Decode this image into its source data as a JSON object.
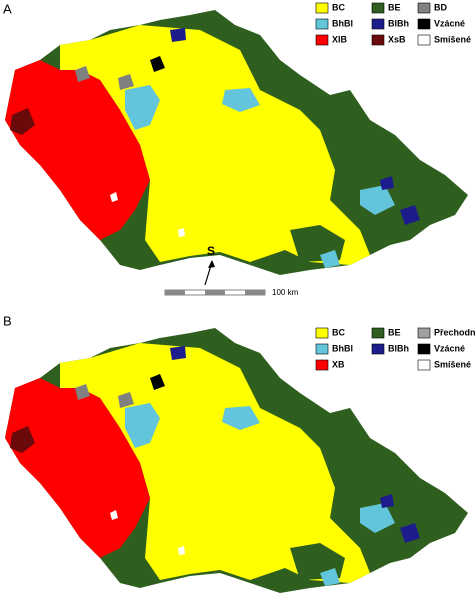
{
  "panels": [
    {
      "label": "A",
      "legend": [
        {
          "label": "BC",
          "color": "#ffff00"
        },
        {
          "label": "BE",
          "color": "#2f5f1f"
        },
        {
          "label": "BD",
          "color": "#808080"
        },
        {
          "label": "BhBl",
          "color": "#63c5dc"
        },
        {
          "label": "BlBh",
          "color": "#1c1c8c"
        },
        {
          "label": "Vzácné",
          "color": "#000000"
        },
        {
          "label": "XIB",
          "color": "#ff0000"
        },
        {
          "label": "XsB",
          "color": "#6a0a0a"
        },
        {
          "label": "Smíšené",
          "color": "#ffffff"
        }
      ]
    },
    {
      "label": "B",
      "legend": [
        {
          "label": "BC",
          "color": "#ffff00"
        },
        {
          "label": "BE",
          "color": "#2f5f1f"
        },
        {
          "label": "Přechodné",
          "color": "#a0a0a0"
        },
        {
          "label": "BhBl",
          "color": "#63c5dc"
        },
        {
          "label": "BlBh",
          "color": "#1c1c8c"
        },
        {
          "label": "Vzácné",
          "color": "#000000"
        },
        {
          "label": "XB",
          "color": "#ff0000"
        },
        {
          "label": "Smíšené",
          "color": "#ffffff"
        }
      ]
    }
  ],
  "north_label": "S",
  "scale_label": "100 km"
}
